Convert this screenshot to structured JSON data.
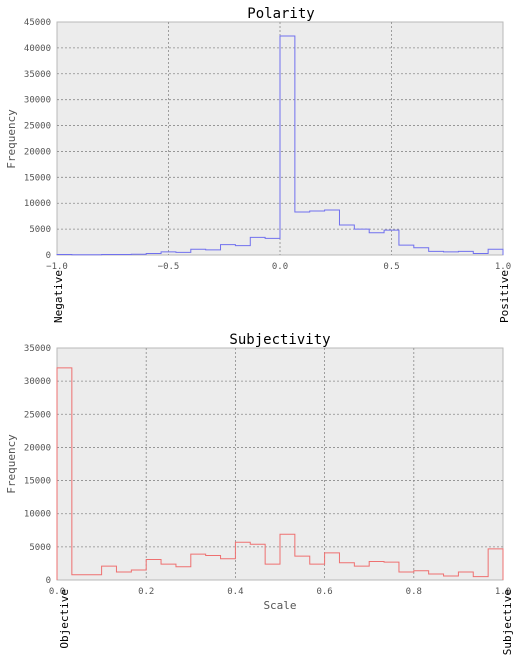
{
  "chart_data": [
    {
      "type": "histogram",
      "title": "Polarity",
      "xlabel": "",
      "ylabel": "Frequency",
      "xlim": [
        -1.0,
        1.0
      ],
      "ylim": [
        0,
        45000
      ],
      "x_ticks": [
        "-1.0",
        "-0.5",
        "0.0",
        "0.5",
        "1.0"
      ],
      "y_ticks": [
        "0",
        "5000",
        "10000",
        "15000",
        "20000",
        "25000",
        "30000",
        "35000",
        "40000",
        "45000"
      ],
      "end_labels": {
        "left": "Negative",
        "right": "Positive"
      },
      "color": "#7070ee",
      "grid": true,
      "bin_edges": [
        -1.0,
        -0.9333,
        -0.8667,
        -0.8,
        -0.7333,
        -0.6667,
        -0.6,
        -0.5333,
        -0.4667,
        -0.4,
        -0.3333,
        -0.2667,
        -0.2,
        -0.1333,
        -0.0667,
        0.0,
        0.0667,
        0.1333,
        0.2,
        0.2667,
        0.3333,
        0.4,
        0.4667,
        0.5333,
        0.6,
        0.6667,
        0.7333,
        0.8,
        0.8667,
        0.9333,
        1.0
      ],
      "counts": [
        100,
        50,
        50,
        100,
        100,
        150,
        300,
        600,
        500,
        1100,
        1000,
        2000,
        1800,
        3400,
        3200,
        42300,
        8300,
        8500,
        8700,
        5800,
        5000,
        4300,
        4800,
        1900,
        1400,
        700,
        600,
        700,
        300,
        1100
      ]
    },
    {
      "type": "histogram",
      "title": "Subjectivity",
      "xlabel": "Scale",
      "ylabel": "Frequency",
      "xlim": [
        0.0,
        1.0
      ],
      "ylim": [
        0,
        35000
      ],
      "x_ticks": [
        "0.0",
        "0.2",
        "0.4",
        "0.6",
        "0.8",
        "1.0"
      ],
      "y_ticks": [
        "0",
        "5000",
        "10000",
        "15000",
        "20000",
        "25000",
        "30000",
        "35000"
      ],
      "end_labels": {
        "left": "Objective",
        "right": "Subjective"
      },
      "color": "#ee7070",
      "grid": true,
      "bin_edges": [
        0.0,
        0.0333,
        0.0667,
        0.1,
        0.1333,
        0.1667,
        0.2,
        0.2333,
        0.2667,
        0.3,
        0.3333,
        0.3667,
        0.4,
        0.4333,
        0.4667,
        0.5,
        0.5333,
        0.5667,
        0.6,
        0.6333,
        0.6667,
        0.7,
        0.7333,
        0.7667,
        0.8,
        0.8333,
        0.8667,
        0.9,
        0.9333,
        0.9667,
        1.0
      ],
      "counts": [
        32000,
        800,
        800,
        2100,
        1200,
        1500,
        3100,
        2400,
        2000,
        3900,
        3700,
        3200,
        5700,
        5400,
        2400,
        6900,
        3600,
        2400,
        4100,
        2600,
        2100,
        2800,
        2700,
        1200,
        1400,
        900,
        600,
        1200,
        500,
        4700
      ]
    }
  ]
}
